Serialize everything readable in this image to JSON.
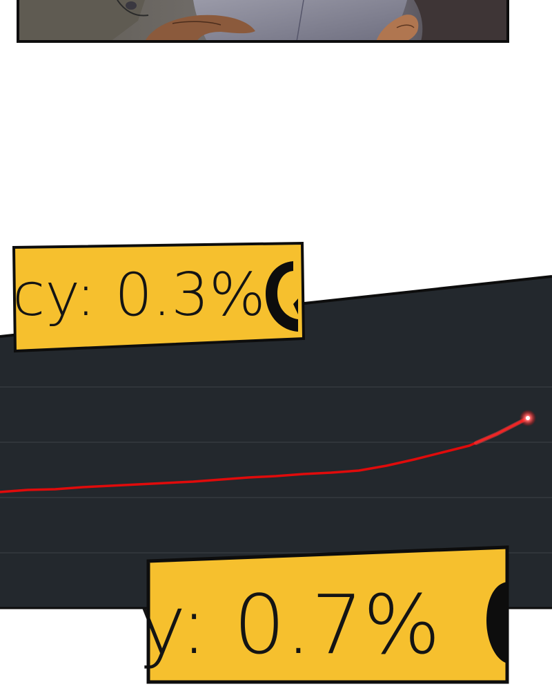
{
  "panels": {
    "top": {
      "content": "illustration of hands holding a tablet device"
    },
    "label_upper": {
      "text": "cy: 0.3%"
    },
    "label_lower": {
      "text": "y: 0.7%"
    }
  },
  "colors": {
    "label_background": "#f6c02e",
    "label_border": "#0d0d0d",
    "screen": "#23282d",
    "graph_line": "#e00b0b",
    "page_background": "#ffffff"
  }
}
